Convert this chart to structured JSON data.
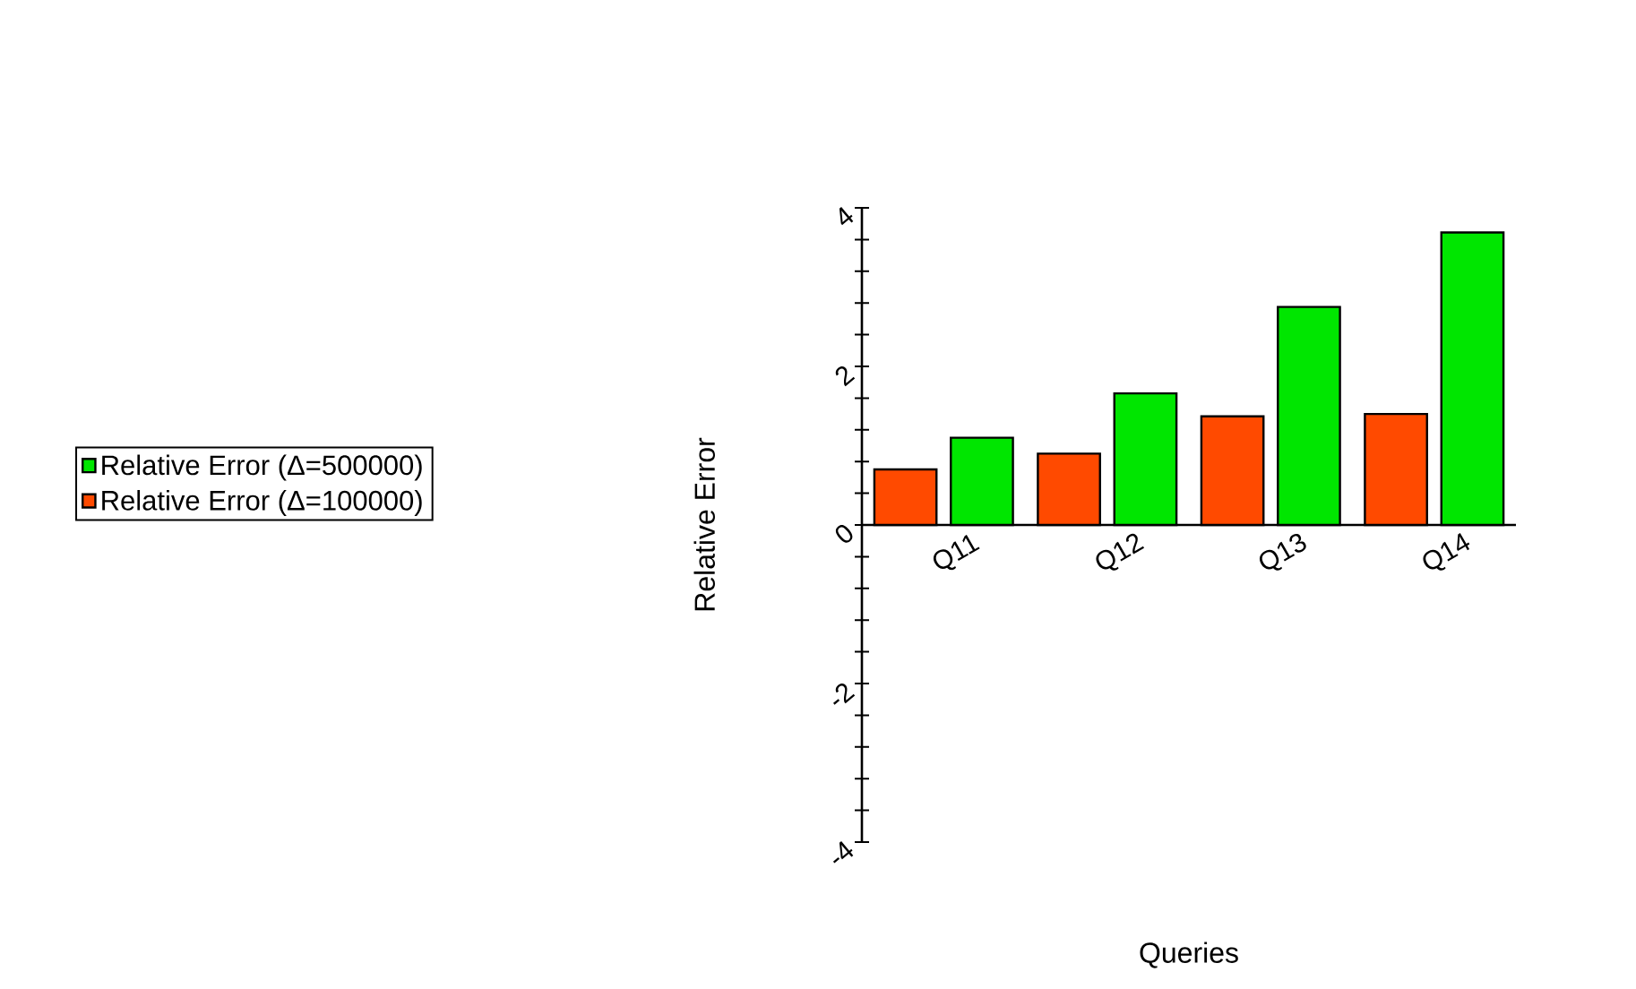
{
  "chart_data": {
    "type": "bar",
    "xlabel": "Queries",
    "ylabel": "Relative Error",
    "categories": [
      "Q11",
      "Q12",
      "Q13",
      "Q14"
    ],
    "series": [
      {
        "name": "Relative Error (Δ=100000)",
        "color": "#ff4a00",
        "values": [
          0.7,
          0.9,
          1.37,
          1.4
        ]
      },
      {
        "name": "Relative Error (Δ=500000)",
        "color": "#00e600",
        "values": [
          1.1,
          1.66,
          2.75,
          3.69
        ]
      }
    ],
    "ylim": [
      -4,
      4
    ],
    "yticks": [
      -4,
      {
        "value": -3.6,
        "label": null
      },
      {
        "value": -3.2,
        "label": null
      },
      {
        "value": -2.8,
        "label": null
      },
      {
        "value": -2.4,
        "label": null
      },
      -2,
      {
        "value": -1.6,
        "label": null
      },
      {
        "value": -1.2,
        "label": null
      },
      {
        "value": -0.8,
        "label": null
      },
      {
        "value": -0.4,
        "label": null
      },
      0,
      {
        "value": 0.4,
        "label": null
      },
      {
        "value": 0.8,
        "label": null
      },
      {
        "value": 1.2,
        "label": null
      },
      {
        "value": 1.6,
        "label": null
      },
      2,
      {
        "value": 2.4,
        "label": null
      },
      {
        "value": 2.8,
        "label": null
      },
      {
        "value": 3.2,
        "label": null
      },
      {
        "value": 3.6,
        "label": null
      },
      4
    ],
    "legend": "left",
    "grid": false
  }
}
